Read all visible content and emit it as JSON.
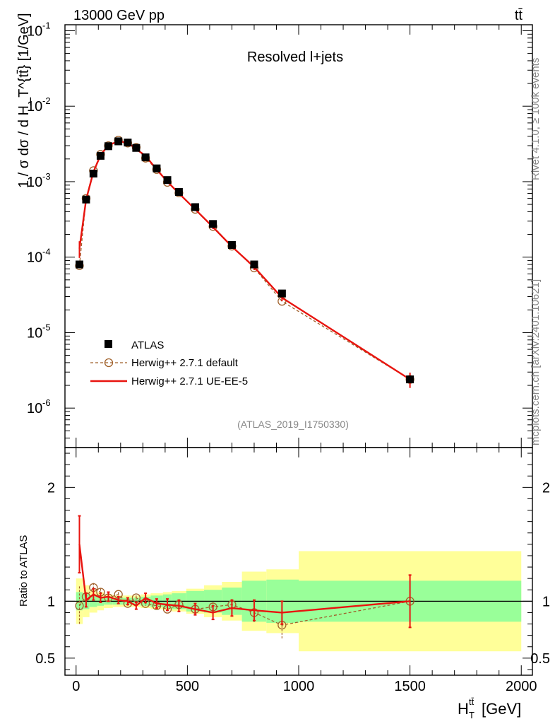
{
  "header": {
    "left": "13000 GeV pp",
    "right": "tt̄"
  },
  "side_labels": {
    "rivet": "Rivet 4.1.0, ≥ 100k events",
    "mcplots": "mcplots.cern.ch [arXiv:2401.10621]"
  },
  "colors": {
    "atlas": "#000000",
    "default": "#a0602a",
    "ueee5": "#e8140f",
    "band_outer": "#ffff99",
    "band_inner": "#99ff99"
  },
  "chart_data": {
    "type": "line",
    "title": "Resolved l+jets",
    "analysis": "(ATLAS_2019_I1750330)",
    "xlabel": "H_T^{tt̄} [GeV]",
    "xlabel_main": "H",
    "xlabel_sub": "T",
    "xlabel_sup": "tt̄",
    "xlabel_unit": "[GeV]",
    "ylabel": "1 / σ dσ / d H_T^{tt̄} [1/GeV]",
    "ylabel_ratio": "Ratio to ATLAS",
    "xlim": [
      -50,
      2050
    ],
    "ylim": [
      3e-07,
      0.12
    ],
    "ylim_ratio": [
      0.35,
      2.35
    ],
    "y_ticks": [
      {
        "v": 0.1,
        "base": "10",
        "exp": "-1"
      },
      {
        "v": 0.01,
        "base": "10",
        "exp": "-2"
      },
      {
        "v": 0.001,
        "base": "10",
        "exp": "-3"
      },
      {
        "v": 0.0001,
        "base": "10",
        "exp": "-4"
      },
      {
        "v": 1e-05,
        "base": "10",
        "exp": "-5"
      },
      {
        "v": 1e-06,
        "base": "10",
        "exp": "-6"
      }
    ],
    "x_ticks": [
      0,
      500,
      1000,
      1500,
      2000
    ],
    "x_tick_labels": [
      "0",
      "500",
      "1000",
      "1500",
      "2000"
    ],
    "ratio_ticks": [
      0.5,
      1,
      2
    ],
    "ratio_tick_labels": [
      "0.5",
      "1",
      "2"
    ],
    "legend": [
      "ATLAS",
      "Herwig++ 2.7.1 default",
      "Herwig++ 2.7.1 UE-EE-5"
    ],
    "x": [
      15,
      45,
      78,
      110,
      145,
      190,
      232,
      270,
      312,
      362,
      410,
      462,
      535,
      615,
      700,
      800,
      925,
      1500
    ],
    "bin_edges": [
      0,
      30,
      60,
      95,
      125,
      165,
      210,
      255,
      290,
      335,
      390,
      430,
      495,
      575,
      655,
      745,
      855,
      1000,
      2000
    ],
    "series": [
      {
        "name": "ATLAS",
        "values": [
          8e-05,
          0.00058,
          0.00128,
          0.0022,
          0.00295,
          0.00342,
          0.0033,
          0.0028,
          0.0021,
          0.0015,
          0.00105,
          0.00073,
          0.00046,
          0.000275,
          0.000145,
          8e-05,
          3.3e-05,
          2.4e-06
        ],
        "band_inner": [
          0.08,
          0.07,
          0.05,
          0.04,
          0.03,
          0.03,
          0.03,
          0.03,
          0.04,
          0.05,
          0.06,
          0.07,
          0.09,
          0.1,
          0.12,
          0.18,
          0.19,
          0.18
        ],
        "band_outer": [
          0.2,
          0.14,
          0.1,
          0.08,
          0.06,
          0.05,
          0.05,
          0.05,
          0.06,
          0.07,
          0.08,
          0.09,
          0.11,
          0.14,
          0.17,
          0.26,
          0.28,
          0.44
        ]
      },
      {
        "name": "Herwig++ 2.7.1 default",
        "values": [
          7.7e-05,
          0.0006,
          0.0014,
          0.0023,
          0.003,
          0.00355,
          0.00325,
          0.00285,
          0.00205,
          0.00145,
          0.00098,
          0.00071,
          0.00043,
          0.000255,
          0.00014,
          7.2e-05,
          2.6e-05,
          2.4e-06
        ],
        "ratio": [
          0.96,
          1.04,
          1.12,
          1.08,
          1.03,
          1.06,
          0.98,
          1.03,
          0.98,
          0.96,
          0.93,
          0.97,
          0.93,
          0.95,
          0.97,
          0.9,
          0.79,
          1.0
        ],
        "ratio_err": [
          0.17,
          0.04,
          0.04,
          0.03,
          0.03,
          0.02,
          0.02,
          0.02,
          0.02,
          0.02,
          0.03,
          0.03,
          0.03,
          0.04,
          0.05,
          0.09,
          0.12,
          0.22
        ]
      },
      {
        "name": "Herwig++ 2.7.1 UE-EE-5",
        "values": [
          0.00013,
          0.00058,
          0.00135,
          0.00225,
          0.00305,
          0.00342,
          0.0033,
          0.0027,
          0.0022,
          0.00145,
          0.001,
          0.0007,
          0.00043,
          0.00025,
          0.000138,
          7.4e-05,
          2.9e-05,
          2.4e-06
        ],
        "ratio": [
          1.5,
          1.01,
          1.06,
          1.03,
          1.04,
          1.01,
          1.0,
          0.96,
          1.03,
          0.98,
          0.97,
          0.96,
          0.93,
          0.9,
          0.94,
          0.92,
          0.9,
          1.0
        ],
        "ratio_err": [
          0.25,
          0.06,
          0.05,
          0.04,
          0.04,
          0.03,
          0.03,
          0.03,
          0.04,
          0.04,
          0.05,
          0.05,
          0.05,
          0.06,
          0.07,
          0.09,
          0.1,
          0.23
        ]
      }
    ]
  }
}
